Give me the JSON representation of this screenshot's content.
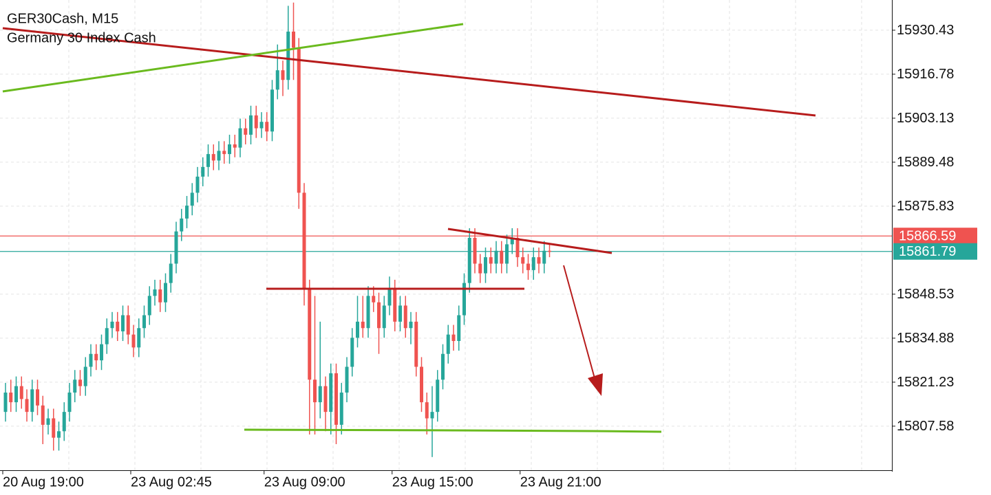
{
  "chart_data": {
    "type": "candlestick",
    "title": "GER30Cash, M15",
    "subtitle": "Germany 30 Index Cash",
    "categories": [
      "20 Aug 19:00",
      null,
      null,
      null,
      null,
      null,
      null,
      null,
      null,
      null,
      null,
      null,
      null,
      null,
      null,
      null,
      null,
      null,
      null,
      null,
      null,
      null,
      null,
      null,
      "23 Aug 02:45",
      null,
      null,
      null,
      null,
      null,
      null,
      null,
      null,
      null,
      null,
      null,
      null,
      null,
      null,
      null,
      null,
      null,
      null,
      null,
      null,
      null,
      null,
      null,
      null,
      "23 Aug 09:00",
      null,
      null,
      null,
      null,
      null,
      null,
      null,
      null,
      null,
      null,
      null,
      null,
      null,
      null,
      null,
      null,
      null,
      null,
      null,
      null,
      null,
      null,
      null,
      "23 Aug 15:00",
      null,
      null,
      null,
      null,
      null,
      null,
      null,
      null,
      null,
      null,
      null,
      null,
      null,
      null,
      null,
      null,
      null,
      null,
      null,
      null,
      null,
      null,
      null,
      "23 Aug 21:00",
      null,
      null,
      null,
      null,
      null
    ],
    "open": [
      15812,
      15818,
      15815,
      15820,
      15816,
      15812,
      15819,
      15814,
      15808,
      15810,
      15804,
      15806,
      15812,
      15818,
      15822,
      15820,
      15826,
      15830,
      15828,
      15833,
      15838,
      15840,
      15837,
      15842,
      15836,
      15832,
      15838,
      15842,
      15848,
      15850,
      15846,
      15852,
      15858,
      15868,
      15872,
      15876,
      15880,
      15885,
      15888,
      15892,
      15890,
      15893,
      15892,
      15895,
      15894,
      15900,
      15898,
      15904,
      15900,
      15902,
      15899,
      15912,
      15918,
      15915,
      15930,
      15925,
      15880,
      15850,
      15822,
      15815,
      15820,
      15812,
      15824,
      15808,
      15818,
      15826,
      15835,
      15840,
      15838,
      15848,
      15846,
      15838,
      15845,
      15850,
      15840,
      15845,
      15838,
      15840,
      15826,
      15815,
      15810,
      15812,
      15822,
      15830,
      15836,
      15834,
      15842,
      15852,
      15866,
      15858,
      15855,
      15860,
      15858,
      15862,
      15858,
      15864,
      15866,
      15860,
      15858,
      15856,
      15860,
      15858,
      15862
    ],
    "high": [
      15821,
      15822,
      15823,
      15823,
      15819,
      15822,
      15822,
      15817,
      15813,
      15813,
      15809,
      15815,
      15821,
      15825,
      15825,
      15829,
      15833,
      15833,
      15836,
      15841,
      15843,
      15843,
      15845,
      15845,
      15839,
      15841,
      15845,
      15851,
      15853,
      15853,
      15855,
      15861,
      15871,
      15875,
      15879,
      15883,
      15888,
      15891,
      15895,
      15895,
      15896,
      15896,
      15898,
      15898,
      15903,
      15903,
      15907,
      15907,
      15905,
      15905,
      15915,
      15926,
      15921,
      15938,
      15939,
      15928,
      15883,
      15853,
      15848,
      15840,
      15823,
      15827,
      15827,
      15821,
      15829,
      15838,
      15848,
      15848,
      15851,
      15851,
      15849,
      15848,
      15854,
      15853,
      15848,
      15848,
      15843,
      15843,
      15829,
      15818,
      15820,
      15825,
      15833,
      15839,
      15839,
      15845,
      15855,
      15869,
      15869,
      15861,
      15863,
      15863,
      15865,
      15865,
      15867,
      15869,
      15869,
      15863,
      15861,
      15863,
      15863,
      15865,
      15864
    ],
    "low": [
      15809,
      15812,
      15812,
      15813,
      15809,
      15809,
      15811,
      15802,
      15805,
      15800,
      15800,
      15803,
      15809,
      15815,
      15817,
      15817,
      15823,
      15825,
      15825,
      15830,
      15835,
      15834,
      15834,
      15833,
      15829,
      15829,
      15835,
      15839,
      15845,
      15843,
      15843,
      15849,
      15855,
      15865,
      15869,
      15873,
      15877,
      15882,
      15885,
      15887,
      15887,
      15889,
      15889,
      15891,
      15891,
      15895,
      15895,
      15897,
      15897,
      15896,
      15896,
      15909,
      15910,
      15912,
      15915,
      15875,
      15845,
      15805,
      15805,
      15810,
      15806,
      15805,
      15802,
      15805,
      15815,
      15823,
      15832,
      15835,
      15835,
      15843,
      15830,
      15835,
      15842,
      15837,
      15837,
      15835,
      15833,
      15823,
      15812,
      15805,
      15798,
      15809,
      15819,
      15827,
      15831,
      15831,
      15839,
      15849,
      15855,
      15852,
      15852,
      15855,
      15855,
      15855,
      15855,
      15861,
      15857,
      15855,
      15853,
      15853,
      15855,
      15855,
      15860
    ],
    "close": [
      15818,
      15815,
      15820,
      15816,
      15812,
      15819,
      15814,
      15808,
      15810,
      15804,
      15806,
      15812,
      15818,
      15822,
      15820,
      15826,
      15830,
      15828,
      15833,
      15838,
      15840,
      15837,
      15842,
      15836,
      15832,
      15838,
      15842,
      15848,
      15850,
      15846,
      15852,
      15858,
      15868,
      15872,
      15876,
      15880,
      15885,
      15888,
      15892,
      15890,
      15893,
      15892,
      15895,
      15894,
      15900,
      15898,
      15904,
      15900,
      15902,
      15899,
      15912,
      15918,
      15915,
      15930,
      15925,
      15880,
      15850,
      15822,
      15815,
      15820,
      15812,
      15824,
      15808,
      15818,
      15826,
      15835,
      15840,
      15838,
      15848,
      15846,
      15838,
      15845,
      15850,
      15840,
      15845,
      15838,
      15840,
      15826,
      15815,
      15810,
      15812,
      15822,
      15830,
      15836,
      15834,
      15842,
      15852,
      15866,
      15858,
      15855,
      15860,
      15858,
      15862,
      15858,
      15864,
      15866,
      15860,
      15858,
      15856,
      15860,
      15858,
      15862,
      15861.79
    ],
    "up_color": "#26a69a",
    "down_color": "#ef5350",
    "ylim": [
      15793.9,
      15939.8
    ],
    "yticks": [
      15807.58,
      15821.23,
      15834.88,
      15848.53,
      15875.83,
      15889.48,
      15903.13,
      15916.78,
      15930.43
    ],
    "grid": true,
    "price_lines": [
      {
        "value": 15866.59,
        "color": "#ef5350"
      },
      {
        "value": 15861.79,
        "color": "#26a69a"
      }
    ]
  }
}
